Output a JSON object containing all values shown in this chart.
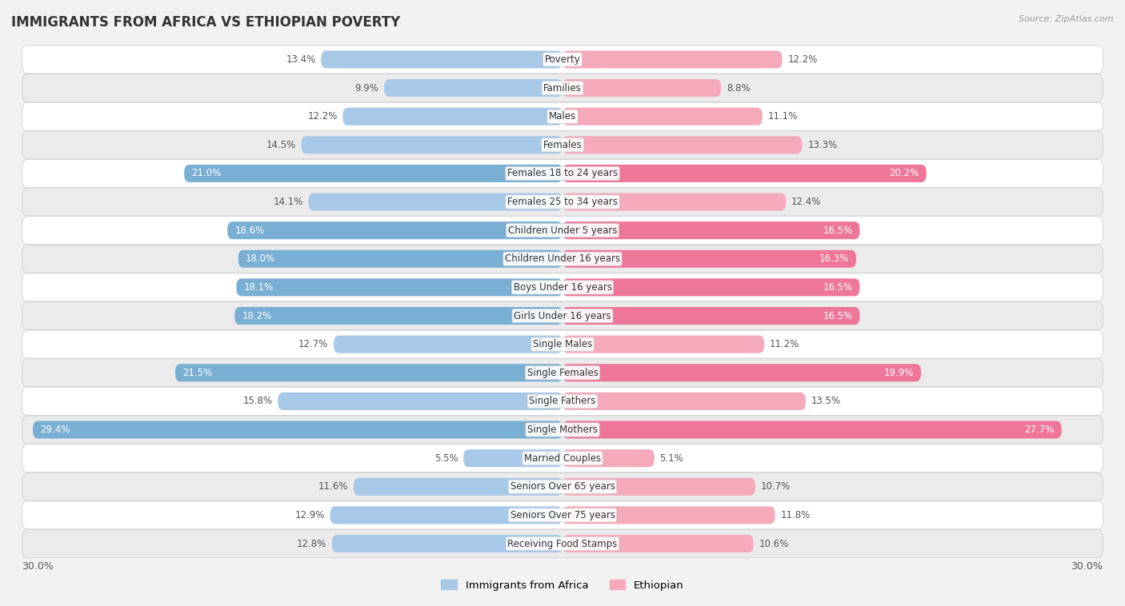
{
  "title": "IMMIGRANTS FROM AFRICA VS ETHIOPIAN POVERTY",
  "source": "Source: ZipAtlas.com",
  "categories": [
    "Poverty",
    "Families",
    "Males",
    "Females",
    "Females 18 to 24 years",
    "Females 25 to 34 years",
    "Children Under 5 years",
    "Children Under 16 years",
    "Boys Under 16 years",
    "Girls Under 16 years",
    "Single Males",
    "Single Females",
    "Single Fathers",
    "Single Mothers",
    "Married Couples",
    "Seniors Over 65 years",
    "Seniors Over 75 years",
    "Receiving Food Stamps"
  ],
  "africa_values": [
    13.4,
    9.9,
    12.2,
    14.5,
    21.0,
    14.1,
    18.6,
    18.0,
    18.1,
    18.2,
    12.7,
    21.5,
    15.8,
    29.4,
    5.5,
    11.6,
    12.9,
    12.8
  ],
  "ethiopian_values": [
    12.2,
    8.8,
    11.1,
    13.3,
    20.2,
    12.4,
    16.5,
    16.3,
    16.5,
    16.5,
    11.2,
    19.9,
    13.5,
    27.7,
    5.1,
    10.7,
    11.8,
    10.6
  ],
  "africa_color_normal": "#A8C8E8",
  "africa_color_highlight": "#7AAFD4",
  "ethiopian_color_normal": "#F4AABB",
  "ethiopian_color_highlight": "#EE7799",
  "bg_color": "#F2F2F2",
  "row_bg_even": "#FFFFFF",
  "row_bg_odd": "#EBEBEB",
  "max_value": 30.0,
  "legend_africa": "Immigrants from Africa",
  "legend_ethiopian": "Ethiopian",
  "highlight_threshold": 16.0,
  "bar_height": 0.62,
  "title_fontsize": 12,
  "label_fontsize": 8.5,
  "cat_fontsize": 8.5
}
